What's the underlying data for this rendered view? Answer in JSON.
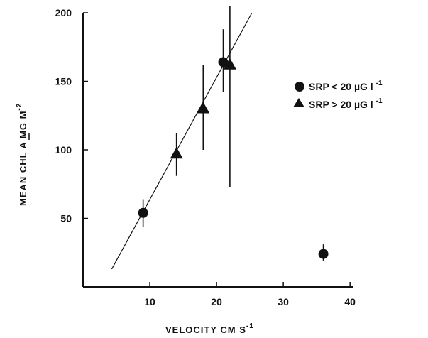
{
  "chart_data": {
    "type": "scatter",
    "title": "",
    "xlabel": "VELOCITY   CM S",
    "xlabel_superscript": "-1",
    "ylabel": "MEAN CHL A   MG M",
    "ylabel_superscript": "-2",
    "xlim": [
      0,
      42
    ],
    "ylim": [
      0,
      200
    ],
    "x_ticks": [
      10,
      20,
      30,
      40
    ],
    "y_ticks": [
      50,
      100,
      150,
      200
    ],
    "grid": false,
    "legend_position": "right",
    "series": [
      {
        "name": "SRP < 20 µG l",
        "name_superscript": "-1",
        "marker": "circle",
        "points": [
          {
            "x": 9,
            "y": 54,
            "err_low": 44,
            "err_high": 64
          },
          {
            "x": 21,
            "y": 164,
            "err_low": 142,
            "err_high": 188
          },
          {
            "x": 36,
            "y": 24,
            "err_low": 19,
            "err_high": 31
          }
        ]
      },
      {
        "name": "SRP > 20 µG l",
        "name_superscript": "-1",
        "marker": "triangle",
        "points": [
          {
            "x": 14,
            "y": 97,
            "err_low": 81,
            "err_high": 112
          },
          {
            "x": 18,
            "y": 130,
            "err_low": 100,
            "err_high": 162
          },
          {
            "x": 22,
            "y": 162,
            "err_low": 73,
            "err_high": 205
          }
        ]
      }
    ],
    "fit_line": {
      "x_start": 4.3,
      "y_start": 13,
      "x_end": 25.3,
      "y_end": 200
    }
  }
}
